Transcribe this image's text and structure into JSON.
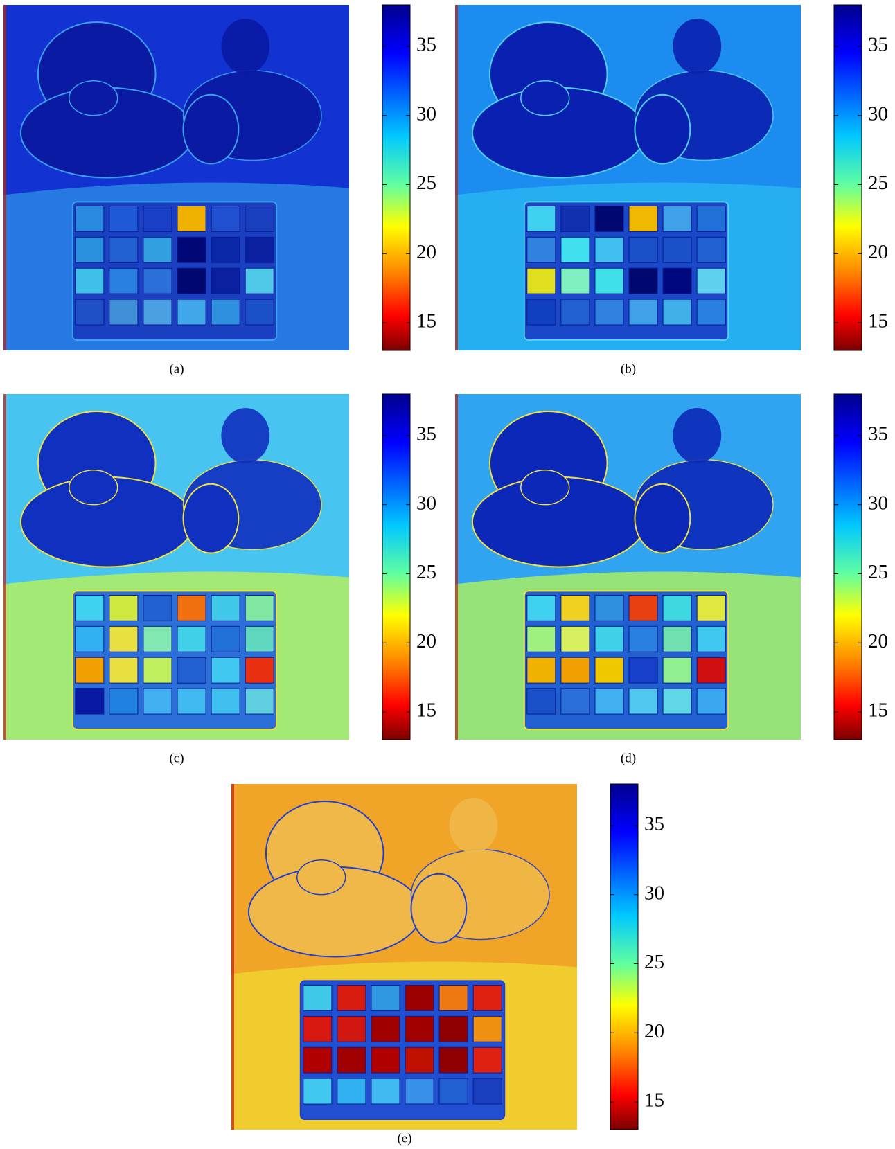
{
  "panels": [
    {
      "label": "(a)",
      "colorbar": {
        "lim": [
          13,
          38
        ],
        "ticks": [
          15,
          20,
          25,
          30,
          35
        ]
      }
    },
    {
      "label": "(b)",
      "colorbar": {
        "lim": [
          13,
          38
        ],
        "ticks": [
          15,
          20,
          25,
          30,
          35
        ]
      }
    },
    {
      "label": "(c)",
      "colorbar": {
        "lim": [
          13,
          38
        ],
        "ticks": [
          15,
          20,
          25,
          30,
          35
        ]
      }
    },
    {
      "label": "(d)",
      "colorbar": {
        "lim": [
          13,
          38
        ],
        "ticks": [
          15,
          20,
          25,
          30,
          35
        ]
      }
    },
    {
      "label": "(e)",
      "colorbar": {
        "lim": [
          13,
          38
        ],
        "ticks": [
          15,
          20,
          25,
          30,
          35
        ]
      }
    }
  ]
}
